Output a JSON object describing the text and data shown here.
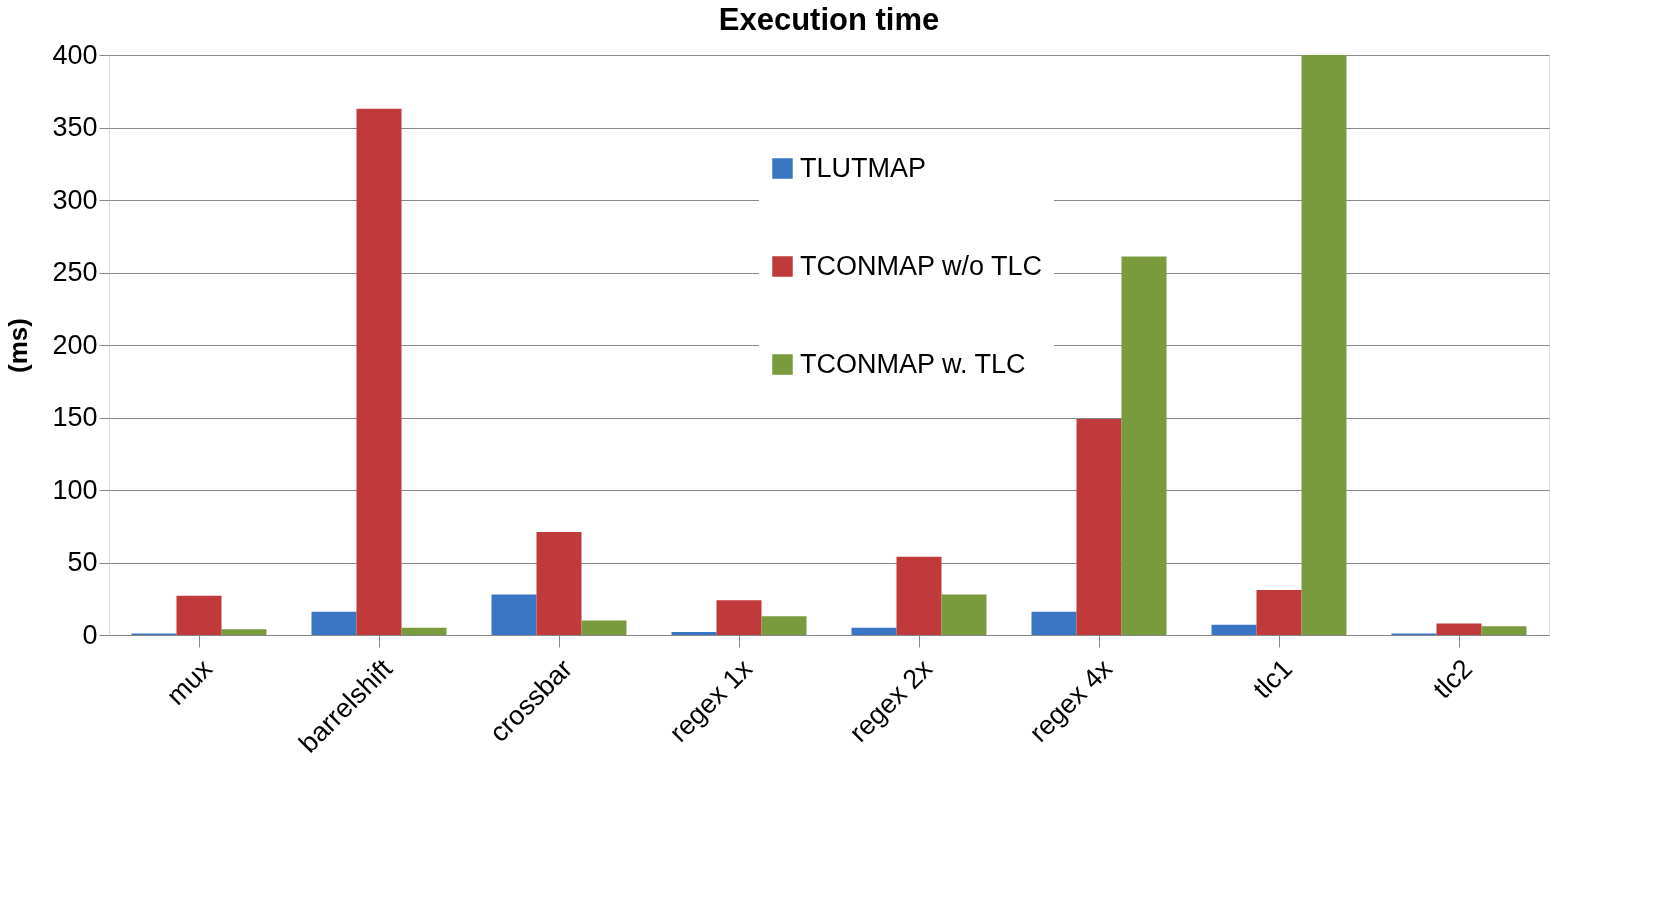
{
  "chart_data": {
    "type": "bar",
    "title": "Execution time",
    "ylabel": "(ms)",
    "categories": [
      "mux",
      "barrelshift",
      "crossbar",
      "regex 1x",
      "regex 2x",
      "regex 4x",
      "tlc1",
      "tlc2"
    ],
    "series": [
      {
        "name": "TLUTMAP",
        "color": "#3a75c4",
        "values": [
          1,
          16,
          28,
          2,
          5,
          16,
          7,
          1
        ]
      },
      {
        "name": "TCONMAP w/o TLC",
        "color": "#c0393b",
        "values": [
          27,
          363,
          71,
          24,
          54,
          149,
          31,
          8
        ]
      },
      {
        "name": "TCONMAP w. TLC",
        "color": "#7a9a3e",
        "values": [
          4,
          5,
          10,
          13,
          28,
          261,
          400,
          6
        ]
      }
    ],
    "ylim": [
      0,
      400
    ],
    "yticks": [
      0,
      50,
      100,
      150,
      200,
      250,
      300,
      350,
      400
    ],
    "grid": "y",
    "legend": "top"
  }
}
